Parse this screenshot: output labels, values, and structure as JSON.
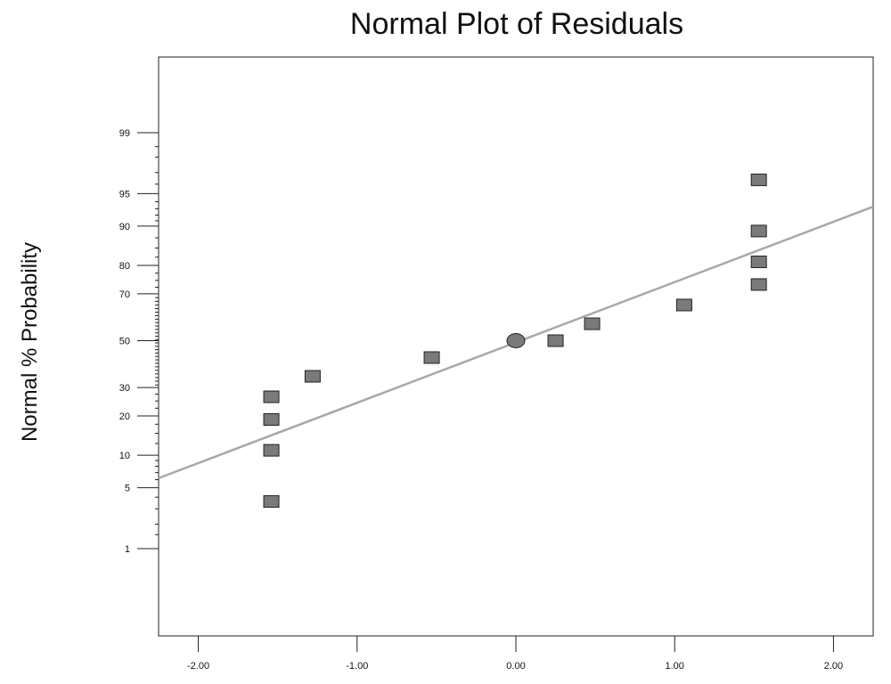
{
  "chart_data": {
    "type": "scatter",
    "title": "Normal Plot of Residuals",
    "xlabel": "",
    "ylabel": "Normal % Probability",
    "xlim": [
      -2.25,
      2.25
    ],
    "y_scale": "normal-probability",
    "ylim": [
      0.1,
      99.9
    ],
    "x_ticks": [
      {
        "value": -2.0,
        "label": "-2.00"
      },
      {
        "value": -1.0,
        "label": "-1.00"
      },
      {
        "value": 0.0,
        "label": "0.00"
      },
      {
        "value": 1.0,
        "label": "1.00"
      },
      {
        "value": 2.0,
        "label": "2.00"
      }
    ],
    "y_ticks": [
      {
        "value": 1,
        "label": "1"
      },
      {
        "value": 5,
        "label": "5"
      },
      {
        "value": 10,
        "label": "10"
      },
      {
        "value": 20,
        "label": "20"
      },
      {
        "value": 30,
        "label": "30"
      },
      {
        "value": 50,
        "label": "50"
      },
      {
        "value": 70,
        "label": "70"
      },
      {
        "value": 80,
        "label": "80"
      },
      {
        "value": 90,
        "label": "90"
      },
      {
        "value": 95,
        "label": "95"
      },
      {
        "value": 99,
        "label": "99"
      }
    ],
    "grid": false,
    "legend": "none",
    "points": [
      {
        "x": -1.54,
        "y": 3.6,
        "marker": "square"
      },
      {
        "x": -1.54,
        "y": 11.0,
        "marker": "square"
      },
      {
        "x": -1.54,
        "y": 18.9,
        "marker": "square"
      },
      {
        "x": -1.54,
        "y": 26.5,
        "marker": "square"
      },
      {
        "x": -1.28,
        "y": 34.5,
        "marker": "square"
      },
      {
        "x": -0.53,
        "y": 42.5,
        "marker": "square"
      },
      {
        "x": 0.0,
        "y": 50.0,
        "marker": "circle"
      },
      {
        "x": 0.25,
        "y": 50.0,
        "marker": "square"
      },
      {
        "x": 0.48,
        "y": 57.5,
        "marker": "square"
      },
      {
        "x": 1.06,
        "y": 65.5,
        "marker": "square"
      },
      {
        "x": 1.53,
        "y": 73.5,
        "marker": "square"
      },
      {
        "x": 1.53,
        "y": 81.1,
        "marker": "square"
      },
      {
        "x": 1.53,
        "y": 89.0,
        "marker": "square"
      },
      {
        "x": 1.53,
        "y": 96.4,
        "marker": "square"
      }
    ],
    "reference_line": {
      "x": [
        -2.25,
        2.25
      ],
      "y": [
        6.2,
        93.3
      ]
    },
    "colors": {
      "marker_fill": "#7a7a7a",
      "marker_stroke": "#222222",
      "reference_line": "#a8a8a8",
      "axis": "#222222"
    }
  }
}
